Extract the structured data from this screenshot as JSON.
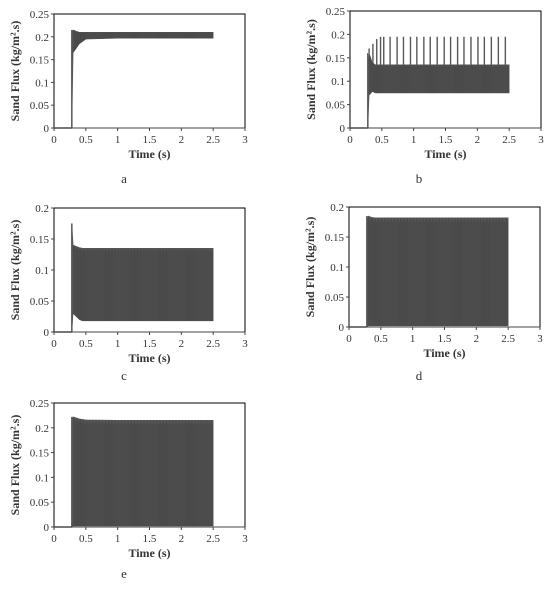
{
  "figure": {
    "panel_labels": [
      "a",
      "b",
      "c",
      "d",
      "e"
    ],
    "colors": {
      "plot_fill": "#575757",
      "axis": "#444444",
      "border": "#000000",
      "text": "#333333"
    }
  },
  "chart_data": [
    {
      "type": "line",
      "panel_label": "a",
      "xlabel": "Time (s)",
      "ylabel": "Sand Flux (kg/m².s)",
      "xlim": [
        0,
        3
      ],
      "ylim": [
        0,
        0.25
      ],
      "x_ticks": [
        "0",
        "0.5",
        "1",
        "1.5",
        "2",
        "2.5",
        "3"
      ],
      "y_ticks": [
        "0",
        "0.05",
        "0.1",
        "0.15",
        "0.2",
        "0.25"
      ],
      "grid": false,
      "series": [
        {
          "x_range": [
            0.28,
            2.5
          ],
          "envelope_x": [
            0.28,
            0.3,
            0.35,
            0.4,
            0.45,
            0.5,
            1.0,
            1.5,
            2.0,
            2.5
          ],
          "envelope_upper": [
            0.2,
            0.215,
            0.212,
            0.21,
            0.21,
            0.21,
            0.21,
            0.21,
            0.21,
            0.21
          ],
          "envelope_lower": [
            0.0,
            0.165,
            0.175,
            0.185,
            0.19,
            0.195,
            0.197,
            0.197,
            0.197,
            0.197
          ],
          "peak_x": [],
          "peak_y": []
        }
      ]
    },
    {
      "type": "line",
      "panel_label": "b",
      "xlabel": "Time (s)",
      "ylabel": "Sand Flux (kg/m².s)",
      "xlim": [
        0,
        3
      ],
      "ylim": [
        0,
        0.25
      ],
      "x_ticks": [
        "0",
        "0.5",
        "1",
        "1.5",
        "2",
        "2.5",
        "3"
      ],
      "y_ticks": [
        "0",
        "0.05",
        "0.1",
        "0.15",
        "0.2",
        "0.25"
      ],
      "grid": false,
      "series": [
        {
          "x_range": [
            0.28,
            2.5
          ],
          "envelope_x": [
            0.28,
            0.3,
            0.35,
            0.4,
            0.45,
            0.5,
            1.0,
            1.5,
            2.0,
            2.5
          ],
          "envelope_upper": [
            0.1,
            0.16,
            0.14,
            0.135,
            0.135,
            0.135,
            0.135,
            0.135,
            0.135,
            0.135
          ],
          "envelope_lower": [
            0.0,
            0.07,
            0.078,
            0.075,
            0.075,
            0.075,
            0.075,
            0.075,
            0.075,
            0.075
          ],
          "peak_x": [
            0.3,
            0.36,
            0.42,
            0.48,
            0.53,
            0.63,
            0.74,
            0.84,
            0.95,
            1.05,
            1.16,
            1.26,
            1.37,
            1.48,
            1.58,
            1.69,
            1.79,
            1.9,
            2.01,
            2.11,
            2.22,
            2.33,
            2.44
          ],
          "peak_y": [
            0.17,
            0.18,
            0.19,
            0.195,
            0.195,
            0.195,
            0.195,
            0.195,
            0.195,
            0.195,
            0.195,
            0.195,
            0.195,
            0.195,
            0.195,
            0.195,
            0.195,
            0.195,
            0.195,
            0.195,
            0.195,
            0.195,
            0.195
          ]
        }
      ]
    },
    {
      "type": "line",
      "panel_label": "c",
      "xlabel": "Time (s)",
      "ylabel": "Sand Flux (kg/m².s)",
      "xlim": [
        0,
        3
      ],
      "ylim": [
        0,
        0.2
      ],
      "x_ticks": [
        "0",
        "0.5",
        "1",
        "1.5",
        "2",
        "2.5",
        "3"
      ],
      "y_ticks": [
        "0",
        "0.05",
        "0.1",
        "0.15",
        "0.2"
      ],
      "grid": false,
      "series": [
        {
          "x_range": [
            0.28,
            2.5
          ],
          "envelope_x": [
            0.28,
            0.3,
            0.35,
            0.4,
            0.45,
            0.5,
            1.0,
            1.5,
            2.0,
            2.5
          ],
          "envelope_upper": [
            0.175,
            0.14,
            0.138,
            0.136,
            0.135,
            0.135,
            0.135,
            0.135,
            0.135,
            0.135
          ],
          "envelope_lower": [
            0.0,
            0.03,
            0.025,
            0.02,
            0.018,
            0.018,
            0.018,
            0.018,
            0.018,
            0.018
          ],
          "peak_x": [],
          "peak_y": []
        }
      ]
    },
    {
      "type": "line",
      "panel_label": "d",
      "xlabel": "Time (s)",
      "ylabel": "Sand Flux (kg/m².s)",
      "xlim": [
        0,
        3
      ],
      "ylim": [
        0,
        0.2
      ],
      "x_ticks": [
        "0",
        "0.5",
        "1",
        "1.5",
        "2",
        "2.5",
        "3"
      ],
      "y_ticks": [
        "0",
        "0.05",
        "0.1",
        "0.15",
        "0.2"
      ],
      "grid": false,
      "series": [
        {
          "x_range": [
            0.28,
            2.5
          ],
          "envelope_x": [
            0.28,
            0.3,
            0.35,
            0.4,
            0.45,
            0.5,
            1.0,
            1.5,
            2.0,
            2.5
          ],
          "envelope_upper": [
            0.17,
            0.185,
            0.183,
            0.182,
            0.182,
            0.182,
            0.182,
            0.182,
            0.182,
            0.182
          ],
          "envelope_lower": [
            0.0,
            0.002,
            0.002,
            0.002,
            0.002,
            0.002,
            0.002,
            0.002,
            0.002,
            0.002
          ],
          "peak_x": [],
          "peak_y": []
        }
      ]
    },
    {
      "type": "line",
      "panel_label": "e",
      "xlabel": "Time (s)",
      "ylabel": "Sand Flux (kg/m².s)",
      "xlim": [
        0,
        3
      ],
      "ylim": [
        0,
        0.25
      ],
      "x_ticks": [
        "0",
        "0.5",
        "1",
        "1.5",
        "2",
        "2.5",
        "3"
      ],
      "y_ticks": [
        "0",
        "0.05",
        "0.1",
        "0.15",
        "0.2",
        "0.25"
      ],
      "grid": false,
      "series": [
        {
          "x_range": [
            0.28,
            2.5
          ],
          "envelope_x": [
            0.28,
            0.3,
            0.35,
            0.4,
            0.45,
            0.5,
            1.0,
            1.5,
            2.0,
            2.5
          ],
          "envelope_upper": [
            0.21,
            0.222,
            0.22,
            0.218,
            0.217,
            0.216,
            0.215,
            0.215,
            0.215,
            0.215
          ],
          "envelope_lower": [
            0.0,
            0.002,
            0.002,
            0.002,
            0.002,
            0.002,
            0.002,
            0.002,
            0.002,
            0.002
          ],
          "peak_x": [],
          "peak_y": []
        }
      ]
    }
  ]
}
